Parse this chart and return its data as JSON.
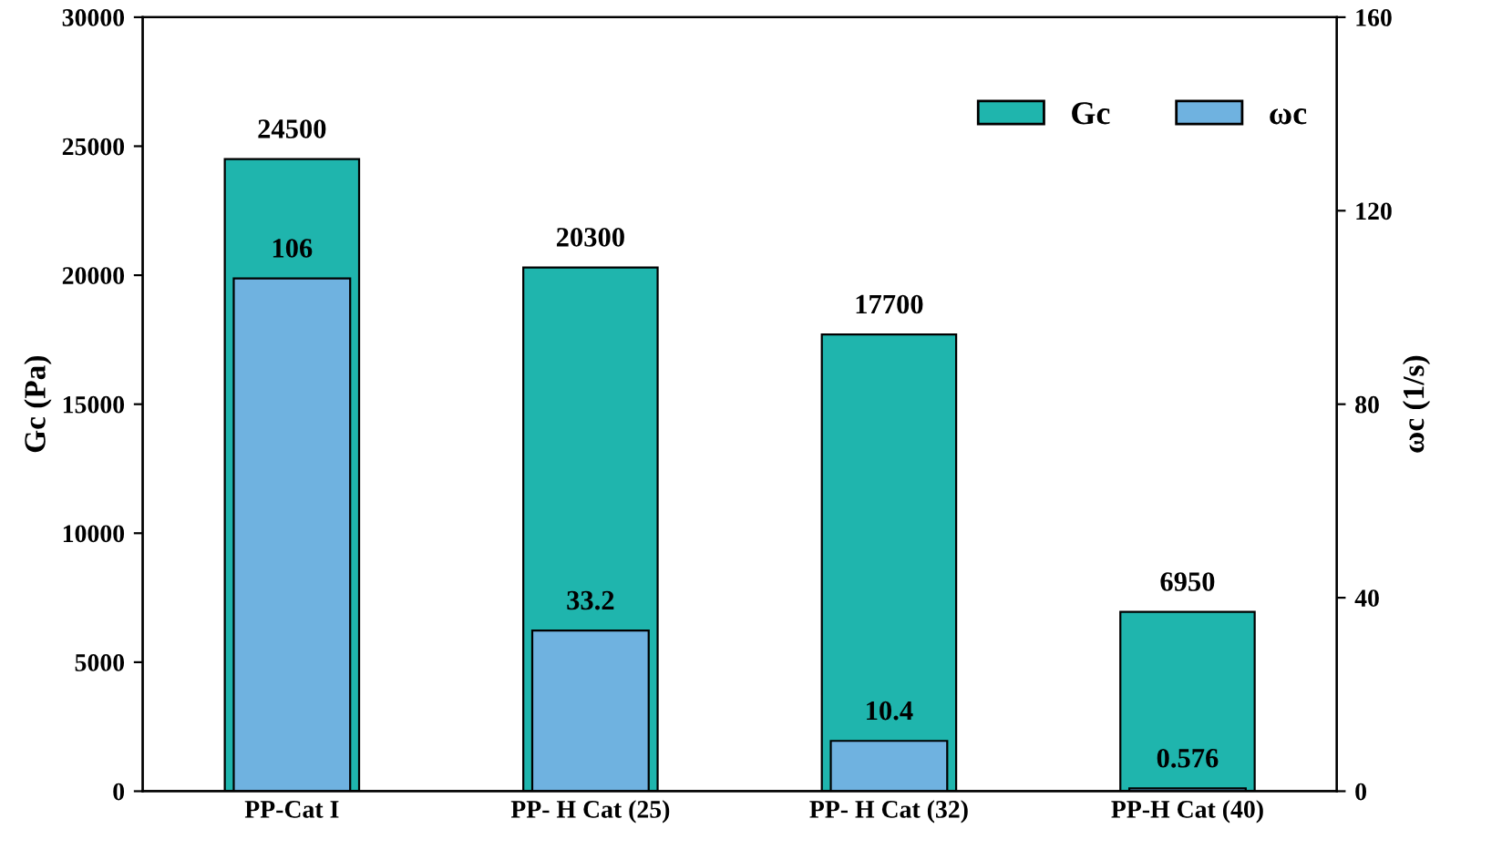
{
  "chart_data": {
    "type": "bar",
    "categories": [
      "PP-Cat I",
      "PP- H Cat (25)",
      "PP- H Cat (32)",
      "PP-H Cat (40)"
    ],
    "series": [
      {
        "name": "Gc",
        "color": "#1fb5ad",
        "values": [
          24500,
          20300,
          17700,
          6950
        ]
      },
      {
        "name": "ωc",
        "color": "#6fb2e0",
        "values": [
          106,
          33.2,
          10.4,
          0.576
        ],
        "axis": "y2"
      }
    ],
    "ylabel": "Gc (Pa)",
    "y2label": "ωc (1/s)",
    "ylim": [
      0,
      30000
    ],
    "yticks": [
      0,
      5000,
      10000,
      15000,
      20000,
      25000,
      30000
    ],
    "y2lim": [
      0,
      160
    ],
    "y2ticks": [
      0,
      40,
      80,
      120,
      160
    ],
    "data_labels": true,
    "legend": "top right",
    "grid": false
  }
}
